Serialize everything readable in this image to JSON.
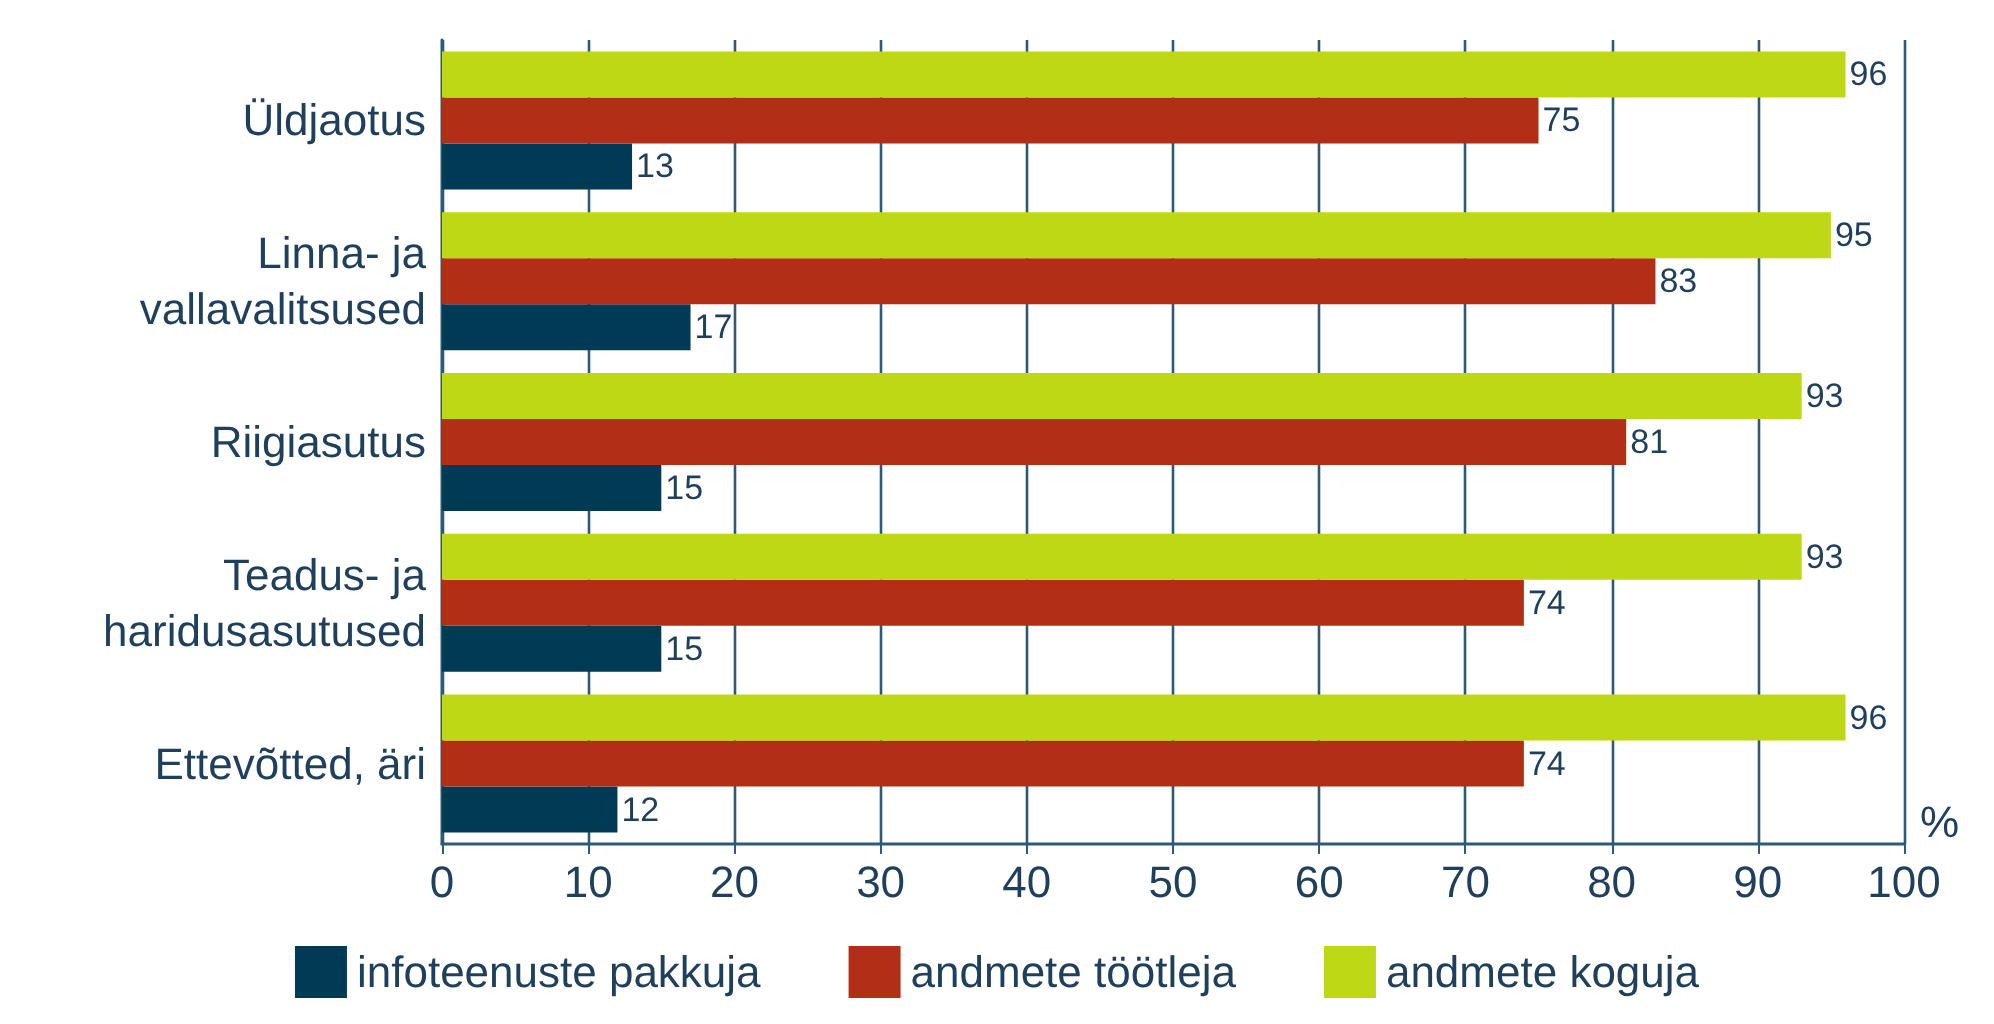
{
  "chart_data": {
    "type": "bar",
    "orientation": "horizontal",
    "categories": [
      "Üldjaotus",
      "Linna- ja\nvallavalitsused",
      "Riigiasutus",
      "Teadus- ja\nharidusasutused",
      "Ettevõtted, äri"
    ],
    "series": [
      {
        "name": "infoteenuste pakkuja",
        "color": "#003a55",
        "values": [
          13,
          17,
          15,
          15,
          12
        ]
      },
      {
        "name": "andmete töötleja",
        "color": "#b22e17",
        "values": [
          75,
          83,
          81,
          74,
          74
        ]
      },
      {
        "name": "andmete koguja",
        "color": "#bed816",
        "values": [
          96,
          95,
          93,
          93,
          96
        ]
      }
    ],
    "xlabel": "%",
    "xlim": [
      0,
      100
    ],
    "xticks": [
      0,
      10,
      20,
      30,
      40,
      50,
      60,
      70,
      80,
      90,
      100
    ],
    "grid": "x",
    "legend": "bottom",
    "data_labels": true
  }
}
